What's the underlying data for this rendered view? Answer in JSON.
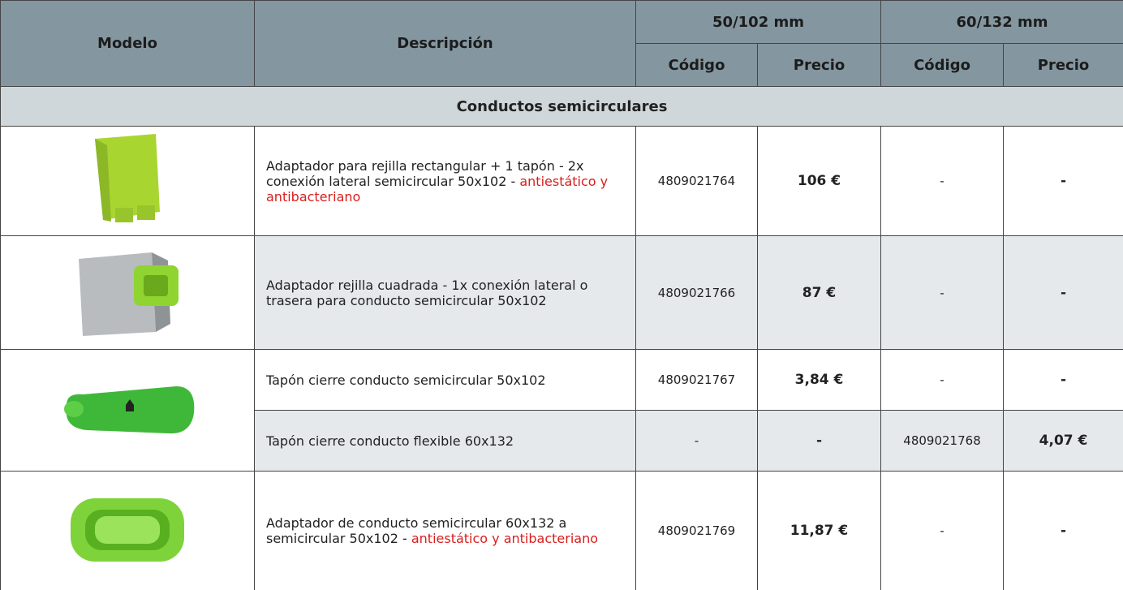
{
  "table": {
    "header": {
      "model": "Modelo",
      "description": "Descripción",
      "size_a": "50/102 mm",
      "size_b": "60/132 mm",
      "code": "Código",
      "price": "Precio"
    },
    "section": "Conductos semicirculares",
    "rows": [
      {
        "description": "Adaptador para rejilla rectangular + 1 tapón - 2x conexión lateral semicircular 50x102 - ",
        "note": "antiestático y antibacteriano",
        "code_a": "4809021764",
        "price_a": "106 €",
        "code_b": "-",
        "price_b": "-"
      },
      {
        "description": "Adaptador rejilla cuadrada - 1x conexión lateral o trasera para conducto semicircular 50x102",
        "code_a": "4809021766",
        "price_a": "87 €",
        "code_b": "-",
        "price_b": "-"
      },
      {
        "description": "Tapón cierre conducto semicircular 50x102",
        "code_a": "4809021767",
        "price_a": "3,84 €",
        "code_b": "-",
        "price_b": "-"
      },
      {
        "description": "Tapón cierre conducto flexible 60x132",
        "code_a": "-",
        "price_a": "-",
        "code_b": "4809021768",
        "price_b": "4,07 €"
      },
      {
        "description": "Adaptador de conducto semicircular 60x132 a semicircular 50x102 - ",
        "note": "antiestático y antibacteriano",
        "code_a": "4809021769",
        "price_a": "11,87 €",
        "code_b": "-",
        "price_b": "-"
      }
    ]
  }
}
